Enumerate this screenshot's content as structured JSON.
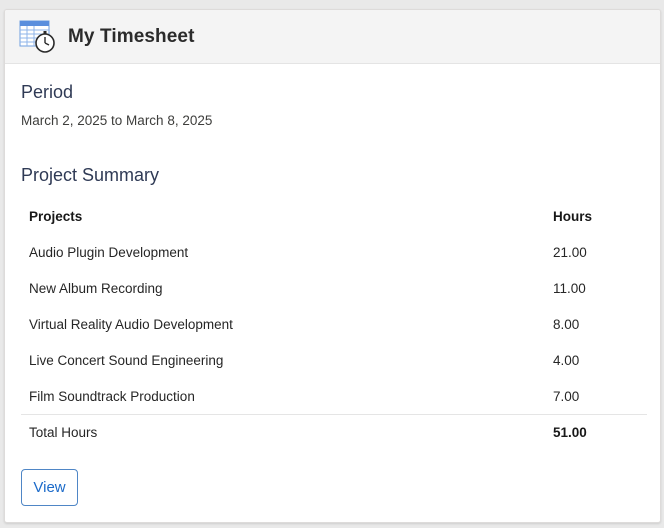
{
  "header": {
    "title": "My Timesheet",
    "icon": "timesheet-stopwatch-icon"
  },
  "period": {
    "title": "Period",
    "value": "March 2, 2025 to March 8, 2025"
  },
  "summary": {
    "title": "Project Summary",
    "columns": [
      "Projects",
      "Hours"
    ],
    "rows": [
      {
        "project": "Audio Plugin Development",
        "hours": "21.00"
      },
      {
        "project": "New Album Recording",
        "hours": "11.00"
      },
      {
        "project": "Virtual Reality Audio Development",
        "hours": "8.00"
      },
      {
        "project": "Live Concert Sound Engineering",
        "hours": "4.00"
      },
      {
        "project": "Film Soundtrack Production",
        "hours": "7.00"
      }
    ],
    "total_label": "Total Hours",
    "total_value": "51.00"
  },
  "actions": {
    "view_label": "View"
  },
  "colors": {
    "accent": "#1b6ac9",
    "header_bg": "#f4f4f4",
    "section_title": "#2f3a55"
  }
}
